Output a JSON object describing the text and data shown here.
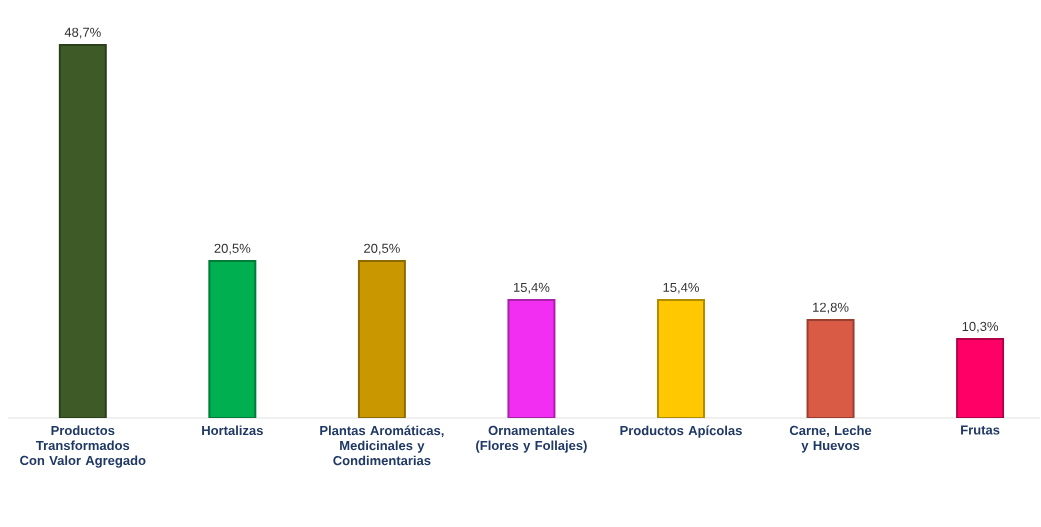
{
  "chart_data": {
    "type": "bar",
    "categories": [
      "Productos Transformados Con Valor Agregado",
      "Hortalizas",
      "Plantas Aromáticas, Medicinales y Condimentarias",
      "Ornamentales (Flores y Follajes)",
      "Productos Apícolas",
      "Carne, Leche y Huevos",
      "Frutas"
    ],
    "values": [
      48.7,
      20.5,
      20.5,
      15.4,
      15.4,
      12.8,
      10.3
    ],
    "value_labels": [
      "48,7%",
      "20,5%",
      "20,5%",
      "15,4%",
      "15,4%",
      "12,8%",
      "10,3%"
    ],
    "colors": [
      "#3d5a27",
      "#00b050",
      "#c99800",
      "#f22ef2",
      "#ffc800",
      "#d95a45",
      "#ff0066"
    ]
  }
}
